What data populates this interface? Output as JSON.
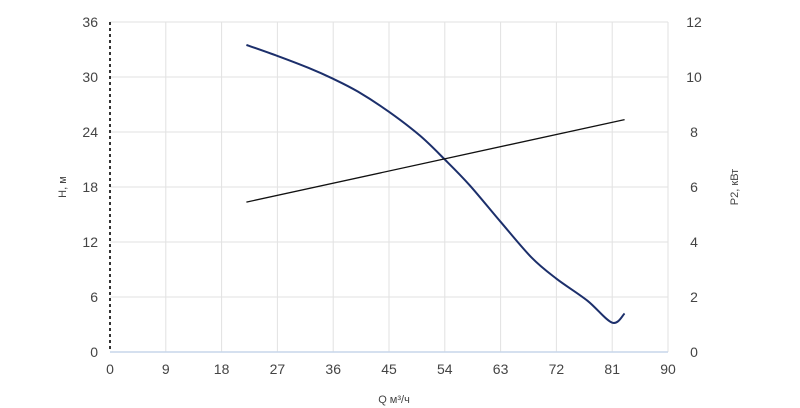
{
  "chart_data": {
    "type": "line",
    "xlabel": "Q м³/ч",
    "ylabel_left": "H, м",
    "ylabel_right": "P2, кВт",
    "x_ticks": [
      0,
      9,
      18,
      27,
      36,
      45,
      54,
      63,
      72,
      81,
      90
    ],
    "y_left_ticks": [
      0,
      6,
      12,
      18,
      24,
      30,
      36
    ],
    "y_right_ticks": [
      0,
      2,
      4,
      6,
      8,
      10,
      12
    ],
    "xlim": [
      0,
      90
    ],
    "ylim_left": [
      0,
      36
    ],
    "ylim_right": [
      0,
      12
    ],
    "grid": true,
    "colors": {
      "head": "#1c2f6b",
      "power": "#111111",
      "axis": "#c7d6ea",
      "grid": "#e2e2e2"
    },
    "series": [
      {
        "axis": "left",
        "x": [
          22,
          27,
          32,
          36,
          40,
          45,
          50,
          54,
          58,
          63,
          68,
          72,
          77,
          81,
          83
        ],
        "y": [
          33.5,
          32.3,
          31.0,
          29.8,
          28.4,
          26.2,
          23.6,
          21.0,
          18.2,
          14.2,
          10.3,
          8.0,
          5.6,
          3.2,
          4.2
        ]
      },
      {
        "axis": "right",
        "x": [
          22,
          83
        ],
        "y": [
          5.45,
          8.45
        ]
      }
    ]
  }
}
